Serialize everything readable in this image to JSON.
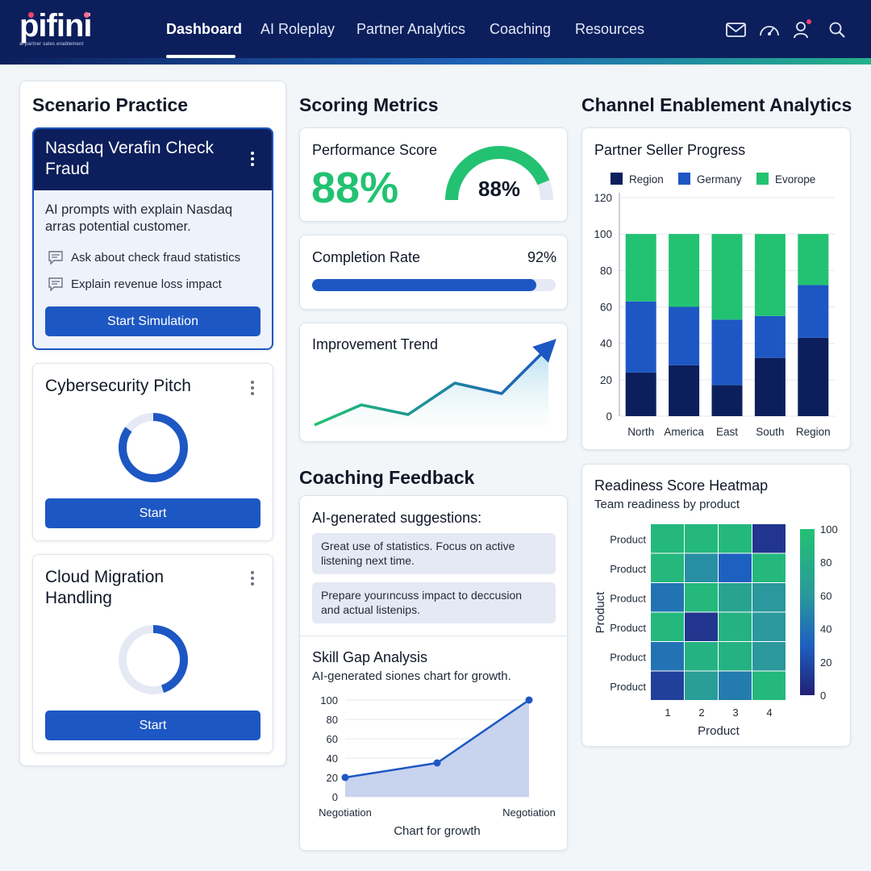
{
  "brand": {
    "logo_text": "pifini",
    "tagline": "ai partner sales enablement",
    "nav_bg": "#0c1f5c",
    "accent_blue": "#1d57c3",
    "accent_green": "#22c272"
  },
  "nav": {
    "items": [
      {
        "label": "Dashboard",
        "active": true
      },
      {
        "label": "AI Roleplay"
      },
      {
        "label": "Partner Analytics"
      },
      {
        "label": "Coaching"
      },
      {
        "label": "Resources"
      }
    ],
    "icons": [
      "mail-icon",
      "speedometer-icon",
      "user-icon",
      "search-icon"
    ]
  },
  "scenario": {
    "title": "Scenario Practice",
    "featured": {
      "title_line1": "Nasdaq Verafin Check",
      "title_line2": "Fraud",
      "desc_line1": "AI prompts with explain Nasdaq",
      "desc_line2": "arras potential customer.",
      "prompts": [
        "Ask about check fraud statistics",
        "Explain revenue loss impact"
      ],
      "button": "Start Simulation"
    },
    "cyber": {
      "title": "Cybersecurity Pitch",
      "button": "Start",
      "progress": 0.85
    },
    "cloud": {
      "title_line1": "Cloud Migration",
      "title_line2": "Handling",
      "button": "Start",
      "progress": 0.45
    }
  },
  "metrics": {
    "title": "Scoring Metrics",
    "performance": {
      "label": "Performance Score",
      "value": "88%",
      "gauge_value": "88%",
      "fraction": 0.88
    },
    "completion": {
      "label": "Completion Rate",
      "value": "92%",
      "fraction": 0.92
    },
    "trend": {
      "label": "Improvement Trend",
      "points": [
        3,
        28,
        16,
        55,
        42,
        100
      ]
    }
  },
  "coaching": {
    "title": "Coaching Feedback",
    "suggestions_title": "AI-generated suggestions:",
    "suggestions": [
      {
        "line1": "Great use of statistics. Focus on active",
        "line2": "listening next time."
      },
      {
        "line1": "Prepare yourıncuss impact to deccusion",
        "line2": "and actual listenips."
      }
    ],
    "skill_gap": {
      "title": "Skill Gap Analysis",
      "subtitle": "AI-generated siones chart for growth.",
      "x_start": "Negotiation",
      "x_end": "Negotiation",
      "xlabel": "Chart for growth"
    }
  },
  "channel": {
    "title": "Channel Enablement Analytics",
    "partner_title": "Partner Seller Progress",
    "readiness_title": "Readiness Score Heatmap",
    "readiness_subtitle": "Team readiness by product"
  },
  "chart_data": [
    {
      "type": "bar",
      "title": "Partner Seller Progress",
      "stacked": true,
      "categories": [
        "North",
        "America",
        "East",
        "South",
        "Region"
      ],
      "series": [
        {
          "name": "Region",
          "color": "#0c1f5c",
          "values": [
            24,
            28,
            17,
            32,
            43
          ]
        },
        {
          "name": "Germany",
          "color": "#1d57c3",
          "values": [
            39,
            32,
            36,
            23,
            29
          ]
        },
        {
          "name": "Evorope",
          "color": "#22c272",
          "values": [
            37,
            40,
            47,
            45,
            28
          ]
        }
      ],
      "ylim": [
        0,
        120
      ],
      "yticks": [
        0,
        20,
        40,
        60,
        80,
        100,
        120
      ],
      "legend": "top",
      "grid": true
    },
    {
      "type": "heatmap",
      "title": "Readiness Score Heatmap",
      "subtitle": "Team readiness by product",
      "x_categories": [
        "1",
        "2",
        "3",
        "4"
      ],
      "y_categories": [
        "Product",
        "Product",
        "Product",
        "Product",
        "Product",
        "Product"
      ],
      "xlabel": "Product",
      "ylabel": "Product",
      "values": [
        [
          90,
          90,
          90,
          10
        ],
        [
          90,
          55,
          30,
          90
        ],
        [
          40,
          90,
          70,
          60
        ],
        [
          90,
          10,
          85,
          60
        ],
        [
          40,
          85,
          85,
          60
        ],
        [
          15,
          65,
          45,
          90
        ]
      ],
      "colorbar": {
        "min": 0,
        "max": 100,
        "ticks": [
          0,
          20,
          40,
          60,
          80,
          100
        ]
      }
    },
    {
      "type": "area",
      "title": "Skill Gap Analysis",
      "subtitle": "AI-generated siones chart for growth.",
      "x": [
        "Negotiation",
        "",
        "Negotiation"
      ],
      "values": [
        20,
        35,
        100
      ],
      "xlabel": "Chart for growth",
      "ylim": [
        0,
        100
      ],
      "yticks": [
        0,
        20,
        40,
        60,
        80,
        100
      ],
      "grid": true
    }
  ]
}
